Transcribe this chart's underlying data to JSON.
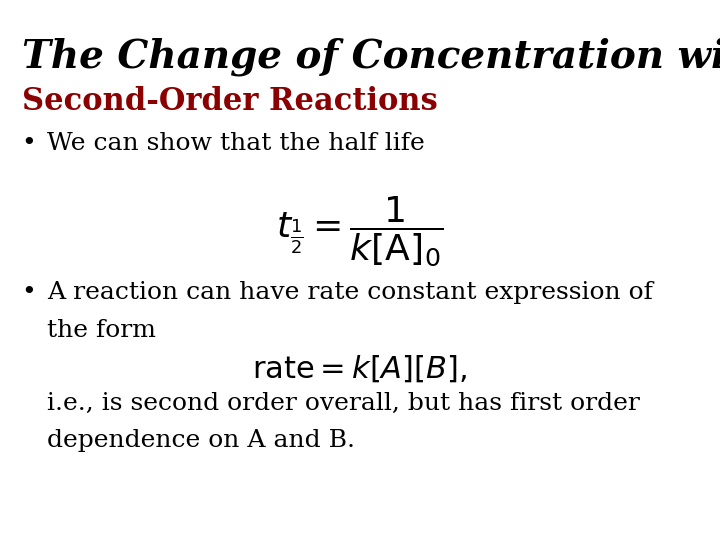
{
  "title": "The Change of Concentration with Time",
  "subtitle": "Second-Order Reactions",
  "subtitle_color": "#8B0000",
  "title_color": "#000000",
  "bg_color": "#FFFFFF",
  "bullet1": "We can show that the half life",
  "equation1": "t_{\\frac{1}{2}} = \\dfrac{1}{k[A]_0}",
  "bullet2_line1": "A reaction can have rate constant expression of",
  "bullet2_line2": "the form",
  "equation2": "\\mathrm{rate} = k[A][B],",
  "bullet3_line1": "i.e., is second order overall, but has first order",
  "bullet3_line2": "dependence on A and B.",
  "title_fontsize": 28,
  "subtitle_fontsize": 22,
  "body_fontsize": 18,
  "eq_fontsize": 22
}
